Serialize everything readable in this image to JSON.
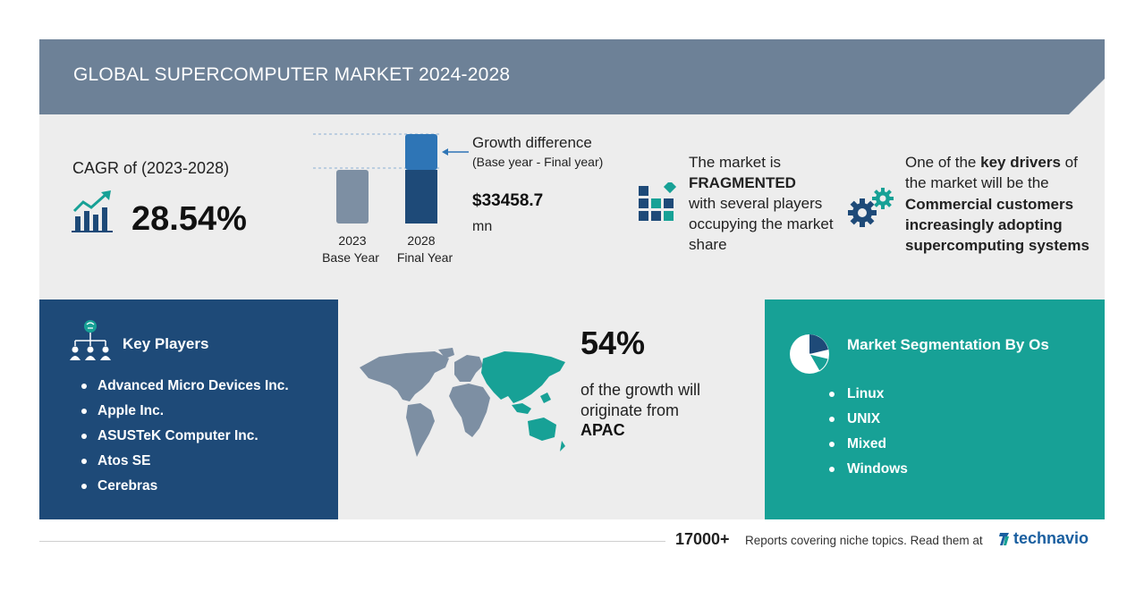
{
  "header": {
    "title": "GLOBAL SUPERCOMPUTER MARKET 2024-2028"
  },
  "cagr": {
    "label": "CAGR of (2023-2028)",
    "value": "28.54%"
  },
  "growth_chart": {
    "bars": [
      {
        "year": "2023",
        "label": "Base Year",
        "relative_value": 0.6
      },
      {
        "year": "2028",
        "label": "Final Year",
        "relative_value": 1.0
      }
    ],
    "title": "Growth difference",
    "subtitle": "(Base year - Final year)",
    "value": "$33458.7",
    "unit": "mn",
    "colors": {
      "base": "#7d8fa3",
      "final_top": "#2e75b6",
      "final_bottom": "#1e4a78"
    }
  },
  "market": {
    "line1": "The market is",
    "bold": "FRAGMENTED",
    "line2": "with several players occupying the market share"
  },
  "drivers": {
    "prefix": "One of the",
    "bold1": "key drivers",
    "middle": "of the market will be the",
    "bold2": "Commercial customers increasingly adopting supercomputing systems"
  },
  "key_players": {
    "title": "Key Players",
    "items": [
      "Advanced Micro Devices Inc.",
      "Apple Inc.",
      "ASUSTeK Computer Inc.",
      "Atos SE",
      "Cerebras"
    ]
  },
  "region": {
    "percent": "54%",
    "text": "of the growth will originate from",
    "name": "APAC",
    "highlight_color": "#17a196"
  },
  "segmentation": {
    "title": "Market Segmentation By Os",
    "items": [
      "Linux",
      "UNIX",
      "Mixed",
      "Windows"
    ]
  },
  "footer": {
    "count": "17000+",
    "text": "Reports covering niche topics. Read them at",
    "brand": "technavio"
  },
  "colors": {
    "header": "#6d8197",
    "panel": "#ededed",
    "navy": "#1e4a78",
    "teal": "#17a196"
  }
}
